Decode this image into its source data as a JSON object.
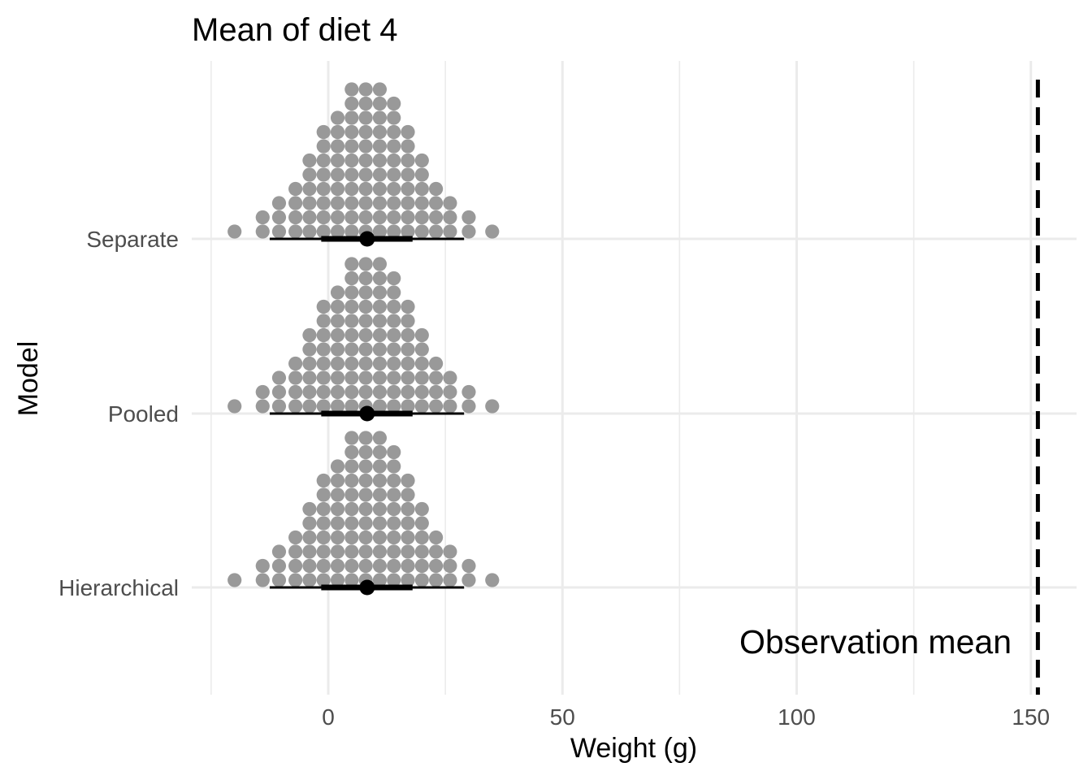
{
  "chart_data": {
    "type": "dotplot",
    "title": "Mean of diet 4",
    "xlabel": "Weight (g)",
    "ylabel": "Model",
    "xlim": [
      -25,
      152
    ],
    "x_ticks": [
      0,
      50,
      100,
      150
    ],
    "x_minor_ticks": [
      -25,
      25,
      75,
      125
    ],
    "grid": true,
    "categories": [
      "Separate",
      "Pooled",
      "Hierarchical"
    ],
    "series": [
      {
        "category": "Separate",
        "dot_columns": [
          {
            "x": -20,
            "count": 1
          },
          {
            "x": -14,
            "count": 2
          },
          {
            "x": -10.5,
            "count": 3
          },
          {
            "x": -7,
            "count": 4
          },
          {
            "x": -4,
            "count": 6
          },
          {
            "x": -1,
            "count": 8
          },
          {
            "x": 2,
            "count": 9
          },
          {
            "x": 5,
            "count": 11
          },
          {
            "x": 8,
            "count": 11
          },
          {
            "x": 11,
            "count": 11
          },
          {
            "x": 14,
            "count": 10
          },
          {
            "x": 17,
            "count": 8
          },
          {
            "x": 20,
            "count": 6
          },
          {
            "x": 23,
            "count": 4
          },
          {
            "x": 26,
            "count": 3
          },
          {
            "x": 30,
            "count": 2
          },
          {
            "x": 35,
            "count": 1
          }
        ],
        "point": 8.3,
        "interval_inner": [
          -1.5,
          18
        ],
        "interval_outer": [
          -12.5,
          29
        ]
      },
      {
        "category": "Pooled",
        "dot_columns": [
          {
            "x": -20,
            "count": 1
          },
          {
            "x": -14,
            "count": 2
          },
          {
            "x": -10.5,
            "count": 3
          },
          {
            "x": -7,
            "count": 4
          },
          {
            "x": -4,
            "count": 6
          },
          {
            "x": -1,
            "count": 8
          },
          {
            "x": 2,
            "count": 9
          },
          {
            "x": 5,
            "count": 11
          },
          {
            "x": 8,
            "count": 11
          },
          {
            "x": 11,
            "count": 11
          },
          {
            "x": 14,
            "count": 10
          },
          {
            "x": 17,
            "count": 8
          },
          {
            "x": 20,
            "count": 6
          },
          {
            "x": 23,
            "count": 4
          },
          {
            "x": 26,
            "count": 3
          },
          {
            "x": 30,
            "count": 2
          },
          {
            "x": 35,
            "count": 1
          }
        ],
        "point": 8.3,
        "interval_inner": [
          -1.5,
          18
        ],
        "interval_outer": [
          -12.5,
          29
        ]
      },
      {
        "category": "Hierarchical",
        "dot_columns": [
          {
            "x": -20,
            "count": 1
          },
          {
            "x": -14,
            "count": 2
          },
          {
            "x": -10.5,
            "count": 3
          },
          {
            "x": -7,
            "count": 4
          },
          {
            "x": -4,
            "count": 6
          },
          {
            "x": -1,
            "count": 8
          },
          {
            "x": 2,
            "count": 9
          },
          {
            "x": 5,
            "count": 11
          },
          {
            "x": 8,
            "count": 11
          },
          {
            "x": 11,
            "count": 11
          },
          {
            "x": 14,
            "count": 10
          },
          {
            "x": 17,
            "count": 8
          },
          {
            "x": 20,
            "count": 6
          },
          {
            "x": 23,
            "count": 4
          },
          {
            "x": 26,
            "count": 3
          },
          {
            "x": 30,
            "count": 2
          },
          {
            "x": 35,
            "count": 1
          }
        ],
        "point": 8.3,
        "interval_inner": [
          -1.5,
          18
        ],
        "interval_outer": [
          -12.5,
          29
        ]
      }
    ],
    "reference_line": {
      "x": 151.5,
      "style": "dashed",
      "label": "Observation mean"
    },
    "colors": {
      "dots": "#999999",
      "interval": "#000000",
      "grid": "#ebebeb",
      "reference": "#000000"
    }
  }
}
